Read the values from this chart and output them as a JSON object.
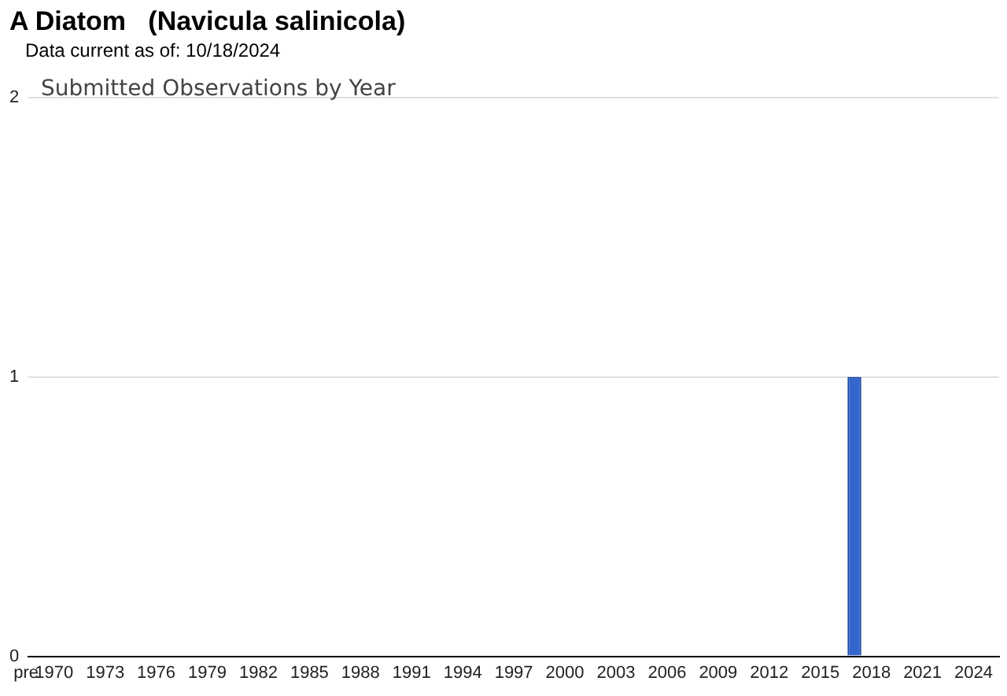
{
  "chart_data": {
    "type": "bar",
    "title": "A Diatom   (Navicula salinicola)",
    "subtitle": "Data current as of: 10/18/2024",
    "annotations": [
      "Submitted Observations by Year"
    ],
    "categories": [
      "pre",
      "1970",
      null,
      null,
      "1973",
      null,
      null,
      "1976",
      null,
      null,
      "1979",
      null,
      null,
      "1982",
      null,
      null,
      "1985",
      null,
      null,
      "1988",
      null,
      null,
      "1991",
      null,
      null,
      "1994",
      null,
      null,
      "1997",
      null,
      null,
      "2000",
      null,
      null,
      "2003",
      null,
      null,
      "2006",
      null,
      null,
      "2009",
      null,
      null,
      "2012",
      null,
      null,
      "2015",
      null,
      null,
      "2018",
      null,
      null,
      "2021",
      null,
      null,
      "2024",
      null
    ],
    "values": [
      0,
      0,
      0,
      0,
      0,
      0,
      0,
      0,
      0,
      0,
      0,
      0,
      0,
      0,
      0,
      0,
      0,
      0,
      0,
      0,
      0,
      0,
      0,
      0,
      0,
      0,
      0,
      0,
      0,
      0,
      0,
      0,
      0,
      0,
      0,
      0,
      0,
      0,
      0,
      0,
      0,
      0,
      0,
      0,
      0,
      0,
      0,
      0,
      1,
      0,
      0,
      0,
      0,
      0,
      0,
      0,
      0
    ],
    "color": "#3366cc",
    "ylim": [
      0,
      2
    ],
    "yticks": [
      0,
      1,
      2
    ],
    "grid": "y"
  }
}
